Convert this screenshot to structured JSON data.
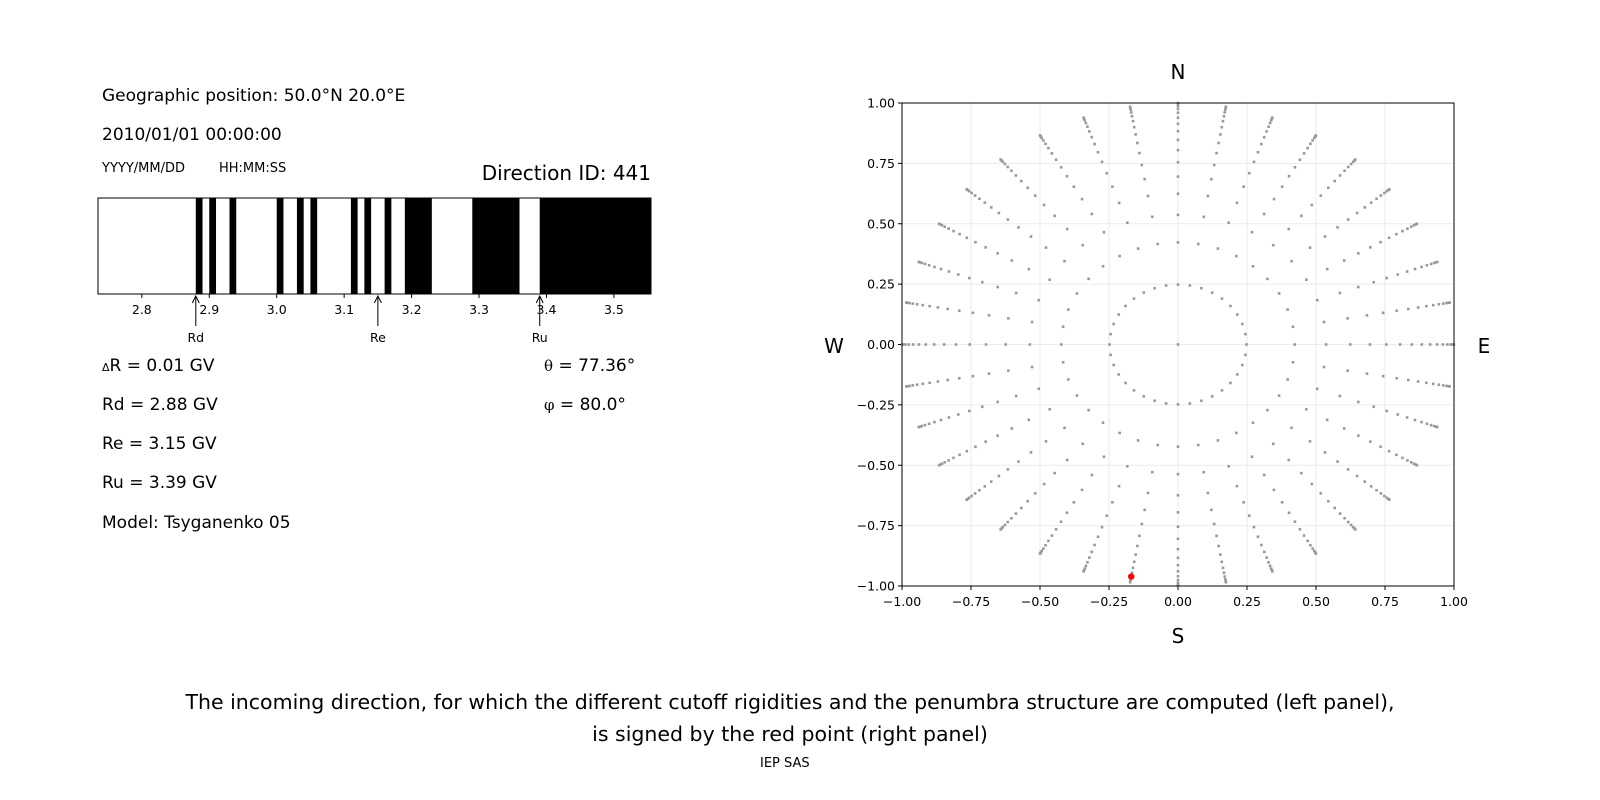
{
  "left_panel": {
    "position_label": "Geographic position: 50.0°N 20.0°E",
    "datetime": "2010/01/01 00:00:00",
    "date_format": "YYYY/MM/DD",
    "time_format": "HH:MM:SS",
    "direction_id": "Direction ID: 441",
    "delta_r": "R = 0.01 GV",
    "delta_symbol": "Δ",
    "rd": "Rd = 2.88 GV",
    "re": "Re = 3.15 GV",
    "ru": "Ru = 3.39 GV",
    "model": "Model: Tsyganenko 05",
    "theta_symbol": "θ",
    "theta": "= 77.36°",
    "phi_symbol": "φ",
    "phi": "= 80.0°"
  },
  "chart_data": [
    {
      "type": "penumbra-bar",
      "xlim": [
        2.735,
        3.555
      ],
      "xticks": [
        2.8,
        2.9,
        3.0,
        3.1,
        3.2,
        3.3,
        3.4,
        3.5
      ],
      "xtick_labels": [
        "2.8",
        "2.9",
        "3.0",
        "3.1",
        "3.2",
        "3.3",
        "3.4",
        "3.5"
      ],
      "allowed_intervals": [
        [
          2.88,
          2.89
        ],
        [
          2.9,
          2.91
        ],
        [
          2.93,
          2.94
        ],
        [
          3.0,
          3.01
        ],
        [
          3.03,
          3.04
        ],
        [
          3.05,
          3.06
        ],
        [
          3.11,
          3.12
        ],
        [
          3.13,
          3.14
        ],
        [
          3.16,
          3.17
        ],
        [
          3.19,
          3.23
        ],
        [
          3.29,
          3.36
        ],
        [
          3.39,
          3.555
        ]
      ],
      "allowed_color": "#000000",
      "forbidden_color": "#ffffff",
      "markers": [
        {
          "label": "Rd",
          "value": 2.88
        },
        {
          "label": "Re",
          "value": 3.15
        },
        {
          "label": "Ru",
          "value": 3.39
        }
      ]
    },
    {
      "type": "scatter",
      "xlim": [
        -1,
        1
      ],
      "ylim": [
        -1,
        1
      ],
      "xticks": [
        "-1.00",
        "-0.75",
        "-0.50",
        "-0.25",
        "0.00",
        "0.25",
        "0.50",
        "0.75",
        "1.00"
      ],
      "yticks": [
        "-1.00",
        "-0.75",
        "-0.50",
        "-0.25",
        "0.00",
        "0.25",
        "0.50",
        "0.75",
        "1.00"
      ],
      "grid": true,
      "compass": {
        "north": "N",
        "south": "S",
        "west": "W",
        "east": "E"
      },
      "directions": {
        "center_point": true,
        "zenith_angles_deg": [
          14.36,
          25.01,
          32.47,
          38.62,
          44.05,
          48.99,
          53.58,
          57.91,
          62.05,
          66.03,
          69.89,
          73.67,
          77.36,
          81.01,
          84.62,
          88.21
        ],
        "azimuths_deg": [
          0,
          10,
          20,
          30,
          40,
          50,
          60,
          70,
          80,
          90,
          100,
          110,
          120,
          130,
          140,
          150,
          160,
          170,
          180,
          190,
          200,
          210,
          220,
          230,
          240,
          250,
          260,
          270,
          280,
          290,
          300,
          310,
          320,
          330,
          340,
          350
        ],
        "color": "#999999"
      },
      "selected": {
        "zenith_deg": 77.36,
        "azimuth_deg": 80.0,
        "color": "#ff0000"
      }
    }
  ],
  "caption": {
    "line1": "The incoming direction, for which the different cutoff rigidities and the penumbra structure are computed (left panel),",
    "line2": "is signed by the red point (right panel)"
  },
  "footer": "IEP SAS"
}
